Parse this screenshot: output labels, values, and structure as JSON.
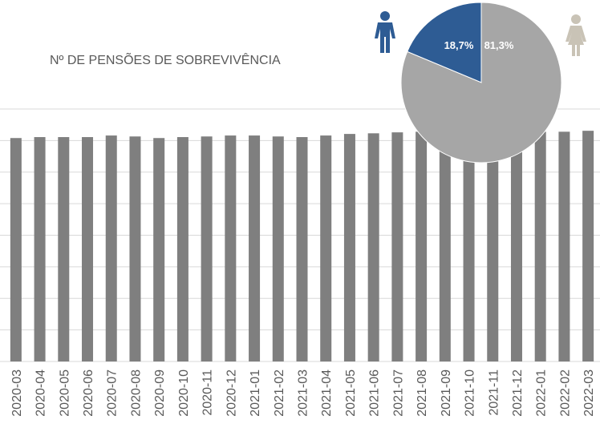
{
  "chart_data": [
    {
      "type": "bar",
      "title": "Nº DE PENSÕES DE SOBREVIVÊNCIA",
      "categories": [
        "2020-03",
        "2020-04",
        "2020-05",
        "2020-06",
        "2020-07",
        "2020-08",
        "2020-09",
        "2020-10",
        "2020-11",
        "2020-12",
        "2021-01",
        "2021-02",
        "2021-03",
        "2021-04",
        "2021-05",
        "2021-06",
        "2021-07",
        "2021-08",
        "2021-09",
        "2021-10",
        "2021-11",
        "2021-12",
        "2022-01",
        "2022-02",
        "2022-03"
      ],
      "values": [
        7.08,
        7.11,
        7.11,
        7.11,
        7.16,
        7.13,
        7.08,
        7.11,
        7.13,
        7.16,
        7.16,
        7.13,
        7.11,
        7.16,
        7.21,
        7.23,
        7.26,
        7.28,
        7.21,
        7.23,
        7.26,
        7.28,
        7.28,
        7.28,
        7.31
      ],
      "color": "#7f7f7f",
      "ylim": [
        0,
        8
      ],
      "yticks": [
        0,
        1,
        2,
        3,
        4,
        5,
        6,
        7,
        8
      ],
      "grid": true
    },
    {
      "type": "pie",
      "values": [
        18.7,
        81.3
      ],
      "value_labels": [
        "18,7%",
        "81,3%"
      ],
      "colors": [
        "#2e5c94",
        "#a6a6a6"
      ]
    }
  ]
}
